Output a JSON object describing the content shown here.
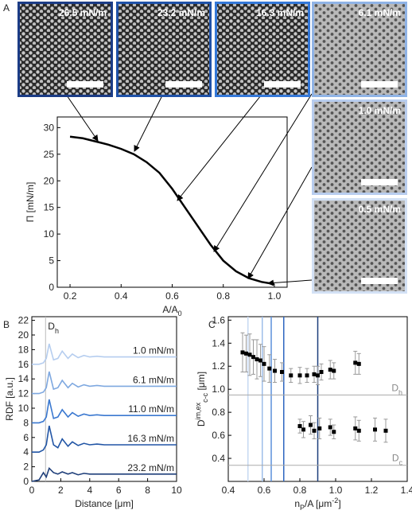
{
  "panel_labels": [
    "A",
    "B",
    "C"
  ],
  "images": [
    {
      "label": "26.5 mN/m",
      "border": "#1b3c86",
      "dark": true
    },
    {
      "label": "23.2 mN/m",
      "border": "#1f52a8",
      "dark": true
    },
    {
      "label": "16.3 mN/m",
      "border": "#3478d8",
      "dark": true
    },
    {
      "label": "6.1 mN/m",
      "border": "#8fb3e6",
      "dark": false
    },
    {
      "label": "1.0 mN/m",
      "border": "#b8cdef",
      "dark": false
    },
    {
      "label": "0.5 mN/m",
      "border": "#d3e1f5",
      "dark": false
    }
  ],
  "chart_data": [
    {
      "type": "line",
      "xlabel": [
        "A/A",
        "0"
      ],
      "ylabel": [
        "Π [mN/m]"
      ],
      "x": [
        0.2,
        0.25,
        0.3,
        0.35,
        0.4,
        0.45,
        0.5,
        0.55,
        0.6,
        0.65,
        0.7,
        0.75,
        0.8,
        0.85,
        0.9,
        0.95,
        1.0
      ],
      "series": [
        {
          "color": "#000000",
          "values": [
            28.3,
            28,
            27.4,
            26.8,
            26,
            25,
            23.5,
            21.5,
            18.5,
            15,
            11.5,
            8,
            5,
            3,
            1.7,
            1.0,
            0.6
          ]
        }
      ],
      "xlim": [
        0.15,
        1.05
      ],
      "xticks": [
        0.2,
        0.4,
        0.6,
        0.8,
        {
          "value": 1,
          "label": "1.0"
        }
      ],
      "ylim": [
        0,
        32
      ],
      "yticks": [
        0,
        5,
        10,
        15,
        20,
        25,
        30
      ]
    },
    {
      "type": "line",
      "xlabel": [
        "Distance [μm]"
      ],
      "ylabel": [
        "RDF [a.u.]"
      ],
      "annotation": [
        "D",
        "h"
      ],
      "vline": 0.95,
      "x": [
        0,
        0.5,
        0.8,
        1.0,
        1.2,
        1.5,
        1.8,
        2.1,
        2.5,
        2.8,
        3.2,
        3.6,
        4.0,
        4.5,
        5,
        6,
        7,
        8,
        9,
        10
      ],
      "series": [
        {
          "name": "1.0 mN/m",
          "color": "#b5cdef",
          "values": [
            16,
            16,
            16.2,
            16.8,
            18.8,
            16.6,
            16.8,
            17.8,
            16.8,
            17.4,
            16.9,
            17.2,
            17,
            17.1,
            17,
            17,
            17,
            17,
            17,
            17
          ]
        },
        {
          "name": "6.1 mN/m",
          "color": "#7ea8e0",
          "values": [
            12,
            12,
            12.2,
            12.8,
            15,
            12.6,
            12.8,
            13.8,
            12.8,
            13.4,
            12.9,
            13.2,
            13,
            13.1,
            13,
            13,
            13,
            13,
            13,
            13
          ]
        },
        {
          "name": "11.0 mN/m",
          "color": "#3a78d0",
          "values": [
            8,
            8,
            8.2,
            8.8,
            11.2,
            8.6,
            8.8,
            9.8,
            8.8,
            9.4,
            8.9,
            9.2,
            9,
            9.1,
            9,
            9,
            9,
            9,
            9,
            9
          ]
        },
        {
          "name": "16.3 mN/m",
          "color": "#2155a5",
          "values": [
            4,
            4,
            4.3,
            5,
            7.6,
            5,
            4.6,
            5.8,
            4.8,
            5.4,
            4.9,
            5.2,
            5,
            5.1,
            5,
            5,
            5,
            5,
            5,
            5
          ]
        },
        {
          "name": "23.2 mN/m",
          "color": "#1f3f7a",
          "values": [
            0,
            0.2,
            1.2,
            0.6,
            1.8,
            1.2,
            1,
            1.3,
            1,
            1.2,
            0.9,
            1.1,
            1,
            1,
            1,
            1,
            1,
            1,
            1,
            1
          ]
        }
      ],
      "xlim": [
        0,
        10
      ],
      "xticks": [
        0,
        2,
        4,
        6,
        8,
        10
      ],
      "ylim": [
        0,
        22.5
      ],
      "yticks": [
        0,
        2,
        4,
        6,
        8,
        10,
        12,
        14,
        16,
        18,
        20,
        22
      ]
    },
    {
      "type": "scatter",
      "xlabel": [
        "n",
        "P",
        "/A [μm",
        "-2",
        "]"
      ],
      "ylabel": [
        "D",
        "im,ex",
        "c-c",
        " [μm]"
      ],
      "hlines": [
        {
          "label": [
            "D",
            "h"
          ],
          "value": 0.95
        },
        {
          "label": [
            "D",
            "c"
          ],
          "value": 0.34
        }
      ],
      "vlines": [
        {
          "value": 0.51,
          "color": "#c6d8f2"
        },
        {
          "value": 0.59,
          "color": "#9dbde9"
        },
        {
          "value": 0.64,
          "color": "#5b90dc"
        },
        {
          "value": 0.71,
          "color": "#2e66c0"
        },
        {
          "value": 0.9,
          "color": "#1c3f7c"
        }
      ],
      "series": [
        {
          "color": "#000000",
          "x": [
            0.48,
            0.5,
            0.52,
            0.54,
            0.56,
            0.58,
            0.6,
            0.63,
            0.66,
            0.7,
            0.75,
            0.8,
            0.84,
            0.88,
            0.9,
            0.92,
            0.97,
            0.99,
            1.11,
            1.13
          ],
          "values": [
            1.32,
            1.31,
            1.3,
            1.28,
            1.26,
            1.25,
            1.22,
            1.18,
            1.16,
            1.15,
            1.12,
            1.12,
            1.12,
            1.13,
            1.12,
            1.15,
            1.17,
            1.16,
            1.23,
            1.22
          ],
          "errors": [
            0.17,
            0.16,
            0.18,
            0.15,
            0.17,
            0.14,
            0.15,
            0.12,
            0.1,
            0.08,
            0.06,
            0.07,
            0.06,
            0.07,
            0.08,
            0.07,
            0.08,
            0.07,
            0.1,
            0.09
          ]
        },
        {
          "color": "#000000",
          "x": [
            0.8,
            0.82,
            0.86,
            0.88,
            0.91,
            0.97,
            0.99,
            1.11,
            1.13,
            1.22,
            1.28
          ],
          "values": [
            0.68,
            0.65,
            0.69,
            0.64,
            0.66,
            0.67,
            0.63,
            0.66,
            0.64,
            0.65,
            0.64
          ],
          "errors": [
            0.06,
            0.07,
            0.08,
            0.07,
            0.09,
            0.07,
            0.06,
            0.1,
            0.09,
            0.1,
            0.1
          ]
        }
      ],
      "xlim": [
        0.4,
        1.4
      ],
      "xticks": [
        0.4,
        0.6,
        0.8,
        {
          "value": 1,
          "label": "1.0"
        },
        1.2,
        1.4
      ],
      "ylim": [
        0.2,
        1.63
      ],
      "yticks": [
        0.4,
        0.6,
        0.8,
        {
          "value": 1,
          "label": "1.0"
        },
        1.2,
        1.4,
        1.6
      ]
    }
  ]
}
